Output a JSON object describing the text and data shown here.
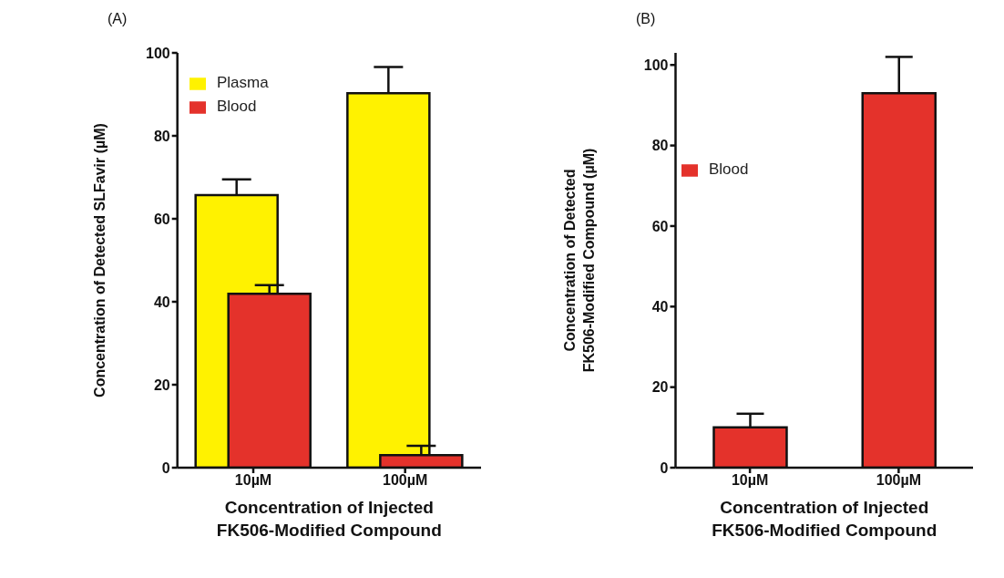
{
  "chart_data": [
    {
      "type": "bar",
      "title": "(A)",
      "xlabel": "Concentration of Injected\nFK506-Modified Compound",
      "ylabel": "Concentration of Detected SLFavir (µM)",
      "categories": [
        "10µM",
        "100µM"
      ],
      "series": [
        {
          "name": "Plasma",
          "color": "#fff200",
          "values": [
            65.7,
            90.3
          ],
          "errors": [
            [
              65.7,
              69.5
            ],
            [
              90.3,
              96.6
            ]
          ]
        },
        {
          "name": "Blood",
          "color": "#e4322b",
          "values": [
            41.9,
            3.0
          ],
          "errors": [
            [
              41.9,
              44.0
            ],
            [
              3.0,
              5.3
            ]
          ]
        }
      ],
      "ylim": [
        0,
        100
      ],
      "yticks": [
        0,
        20,
        40,
        60,
        80,
        100
      ],
      "grid": false,
      "legend": "top left"
    },
    {
      "type": "bar",
      "title": "(B)",
      "xlabel": "Concentration of Injected\nFK506-Modified Compound",
      "ylabel": "Concentration of Detected\nFK506-Modified Compound (µM)",
      "categories": [
        "10µM",
        "100µM"
      ],
      "series": [
        {
          "name": "Blood",
          "color": "#e4322b",
          "values": [
            10.0,
            93.0
          ],
          "errors": [
            [
              10.0,
              13.4
            ],
            [
              93.0,
              102.0
            ]
          ]
        }
      ],
      "ylim": [
        0,
        103
      ],
      "yticks": [
        0,
        20,
        40,
        60,
        80,
        100
      ],
      "grid": false,
      "legend": "top left"
    }
  ]
}
